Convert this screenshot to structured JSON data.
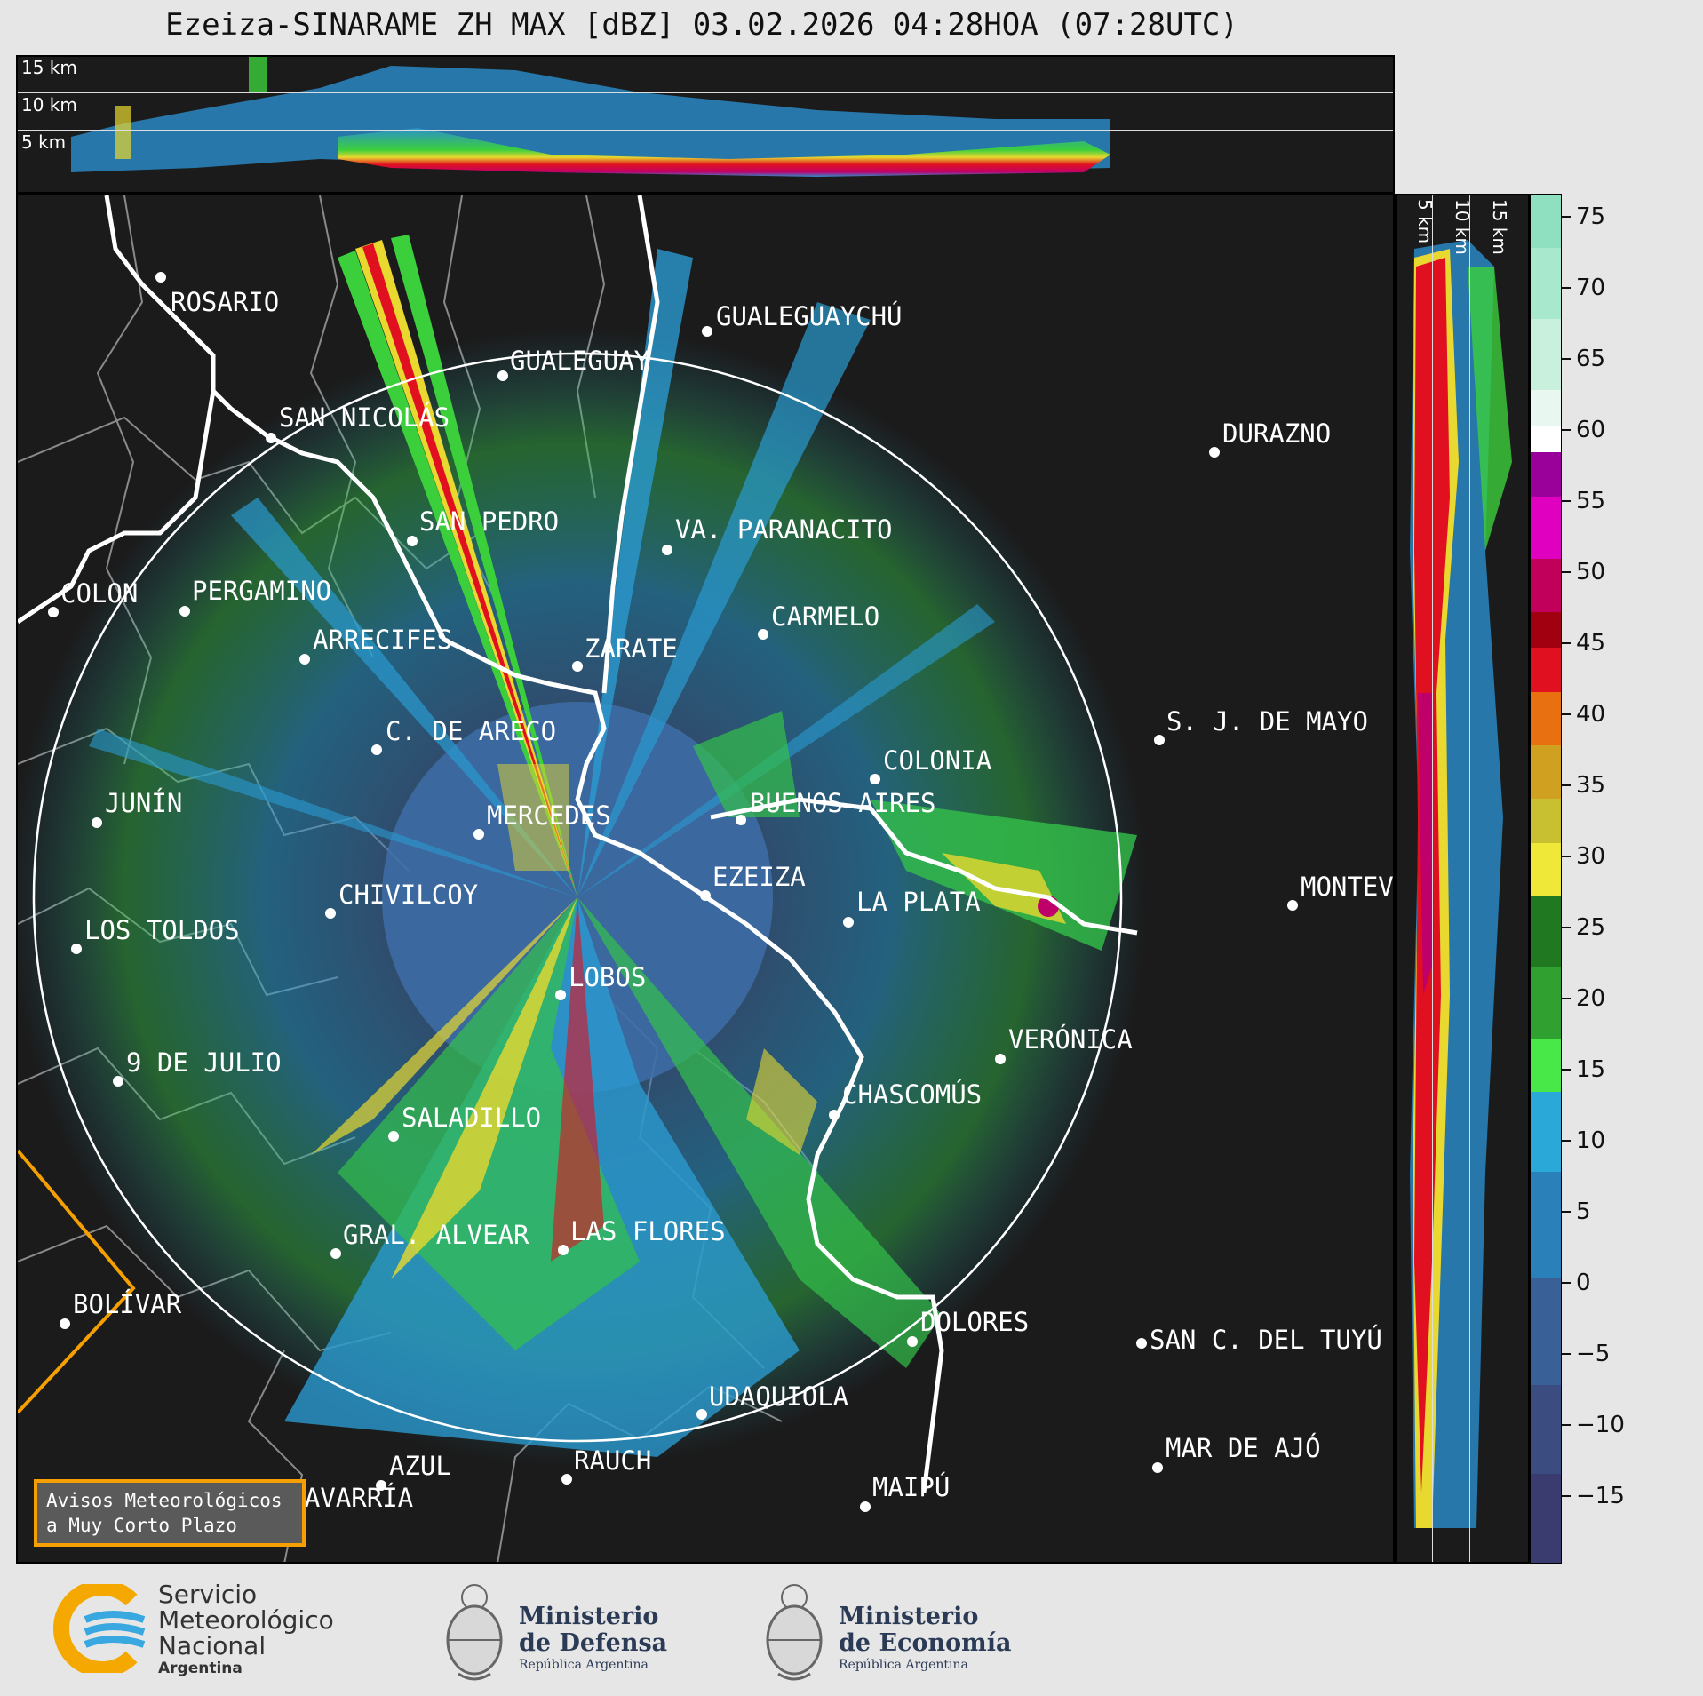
{
  "title": "Ezeiza-SINARAME ZH MAX [dBZ] 03.02.2026 04:28HOA (07:28UTC)",
  "altitude_labels": [
    "15 km",
    "10 km",
    "5 km"
  ],
  "side_altitude_labels": [
    "5 km",
    "10 km",
    "15 km"
  ],
  "colorbar": {
    "ticks": [
      "75",
      "70",
      "65",
      "60",
      "55",
      "50",
      "45",
      "40",
      "35",
      "30",
      "25",
      "20",
      "15",
      "10",
      "5",
      "0",
      "−5",
      "−10",
      "−15"
    ]
  },
  "cities": [
    "ROSARIO",
    "GUALEGUAYCHÚ",
    "GUALEGUAY",
    "SAN NICOLÁS",
    "DURAZNO",
    "SAN PEDRO",
    "VA. PARANACITO",
    "COLON",
    "PERGAMINO",
    "CARMELO",
    "ARRECIFES",
    "ZÁRATE",
    "S. J. DE MAYO",
    "C. DE ARECO",
    "COLONIA",
    "JUNÍN",
    "BUENOS AIRES",
    "MERCEDES",
    "MONTEVIDEO",
    "EZEIZA",
    "CHIVILCOY",
    "LA PLATA",
    "LOS TOLDOS",
    "LOBOS",
    "VERÓNICA",
    "9 DE JULIO",
    "CHASCOMÚS",
    "SALADILLO",
    "GRAL. ALVEAR",
    "LAS FLORES",
    "BOLÍVAR",
    "DOLORES",
    "SAN C. DEL TUYÚ",
    "UDAQUIOLA",
    "AZUL",
    "RAUCH",
    "MAR DE AJÓ",
    "OLAVARRÍA",
    "MAIPÚ"
  ],
  "warning_box": [
    "Avisos Meteorológicos",
    "a Muy Corto Plazo"
  ],
  "logos": {
    "smn": [
      "Servicio",
      "Meteorológico",
      "Nacional",
      "Argentina"
    ],
    "defensa": [
      "Ministerio",
      "de Defensa",
      "República Argentina"
    ],
    "economia": [
      "Ministerio",
      "de Economía",
      "República Argentina"
    ]
  },
  "colors": {
    "background": "#1b1b1b",
    "range_ring": "#ffffff",
    "rivers": "#ffffff",
    "borders": "#8a8a8a",
    "warning_outline": "#f5a000"
  }
}
